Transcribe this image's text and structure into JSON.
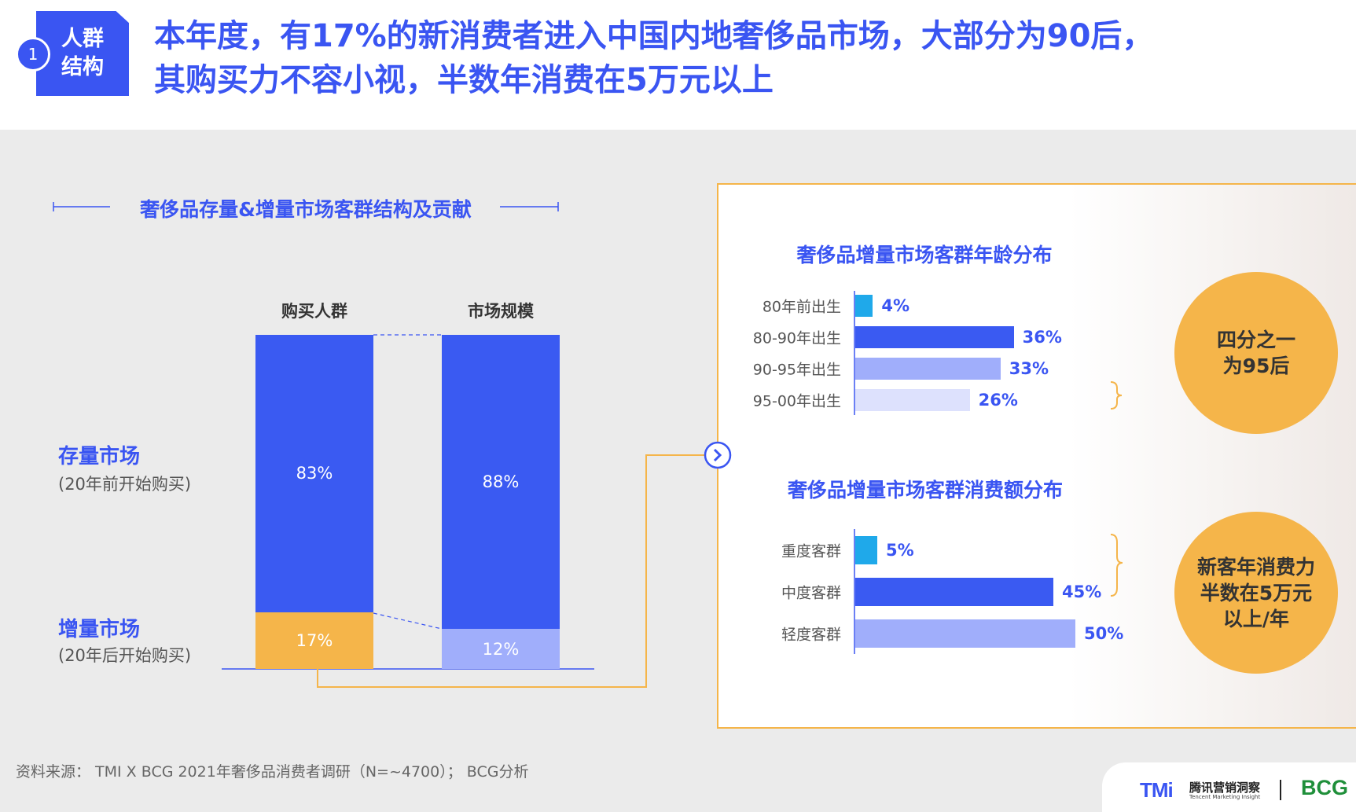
{
  "header": {
    "badge_line1": "人群",
    "badge_line2": "结构",
    "badge_number": "1",
    "title_line1": "本年度，有17%的新消费者进入中国内地奢侈品市场，大部分为90后，",
    "title_line2": "其购买力不容小视，半数年消费在5万元以上"
  },
  "left": {
    "section_title": "奢侈品存量&增量市场客群结构及贡献",
    "row1_main": "存量市场",
    "row1_sub": "(20年前开始购买)",
    "row2_main": "增量市场",
    "row2_sub": "(20年后开始购买)"
  },
  "right": {
    "age_title": "奢侈品增量市场客群年龄分布",
    "spend_title": "奢侈品增量市场客群消费额分布",
    "callout1": "四分之一\n为95后",
    "callout2": "新客年消费力\n半数在5万元\n以上/年"
  },
  "footer": {
    "source": "资料来源： TMI X BCG 2021年奢侈品消费者调研（N=~4700）； BCG分析",
    "tmi_logo": "TMi",
    "tmi_cn": "腾讯营销洞察",
    "tmi_en": "Tencent Marketing Insight",
    "bcg_logo": "BCG"
  },
  "chart_data": [
    {
      "type": "bar",
      "stacked": true,
      "categories": [
        "购买人群",
        "市场规模"
      ],
      "series": [
        {
          "name": "存量市场",
          "values": [
            83,
            88
          ],
          "labels": [
            "83%",
            "88%"
          ]
        },
        {
          "name": "增量市场",
          "values": [
            17,
            12
          ],
          "labels": [
            "17%",
            "12%"
          ]
        }
      ],
      "ylim": [
        0,
        100
      ],
      "colors": {
        "存量市场": "#3a5af2",
        "增量市场_buyers": "#f5b54a",
        "增量市场_market": "#a0aefb"
      }
    },
    {
      "type": "bar",
      "orientation": "horizontal",
      "title": "奢侈品增量市场客群年龄分布",
      "categories": [
        "80年前出生",
        "80-90年出生",
        "90-95年出生",
        "95-00年出生"
      ],
      "values": [
        4,
        36,
        33,
        26
      ],
      "labels": [
        "4%",
        "36%",
        "33%",
        "26%"
      ],
      "colors": [
        "#1fa9ea",
        "#3a5af2",
        "#a0aefb",
        "#dde1fd"
      ]
    },
    {
      "type": "bar",
      "orientation": "horizontal",
      "title": "奢侈品增量市场客群消费额分布",
      "categories": [
        "重度客群",
        "中度客群",
        "轻度客群"
      ],
      "values": [
        5,
        45,
        50
      ],
      "labels": [
        "5%",
        "45%",
        "50%"
      ],
      "colors": [
        "#1fa9ea",
        "#3a5af2",
        "#a0aefb"
      ]
    }
  ]
}
